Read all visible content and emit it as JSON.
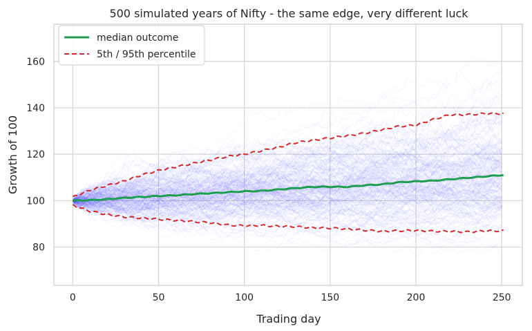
{
  "chart_data": {
    "type": "line",
    "title": "500 simulated years of Nifty - the same edge, very different luck",
    "xlabel": "Trading day",
    "ylabel": "Growth of 100",
    "xlim": [
      -11,
      262
    ],
    "ylim": [
      63.5,
      176
    ],
    "xticks": [
      0,
      50,
      100,
      150,
      200,
      250
    ],
    "yticks": [
      80,
      100,
      120,
      140,
      160
    ],
    "grid": true,
    "legend_position": "top-left",
    "simulated_paths": {
      "count": 500,
      "days": 251,
      "start_value": 100,
      "color": "#5b5bff",
      "opacity": 0.06
    },
    "series": [
      {
        "name": "median outcome",
        "color": "#1e9e4f",
        "style": "solid",
        "points": [
          [
            0,
            100
          ],
          [
            10,
            100.2
          ],
          [
            20,
            100.6
          ],
          [
            30,
            101.2
          ],
          [
            40,
            101.6
          ],
          [
            50,
            102.0
          ],
          [
            60,
            102.3
          ],
          [
            70,
            102.8
          ],
          [
            80,
            103.2
          ],
          [
            90,
            103.6
          ],
          [
            100,
            104.0
          ],
          [
            110,
            104.2
          ],
          [
            120,
            104.8
          ],
          [
            130,
            105.4
          ],
          [
            140,
            105.9
          ],
          [
            150,
            106.0
          ],
          [
            160,
            105.9
          ],
          [
            170,
            106.6
          ],
          [
            180,
            107.0
          ],
          [
            190,
            107.9
          ],
          [
            200,
            108.3
          ],
          [
            210,
            108.6
          ],
          [
            220,
            109.2
          ],
          [
            230,
            109.8
          ],
          [
            240,
            110.4
          ],
          [
            250,
            111.0
          ]
        ]
      },
      {
        "name": "5th / 95th percentile",
        "color": "#d62728",
        "style": "dashed",
        "points": [
          [
            0,
            101.5
          ],
          [
            10,
            104.5
          ],
          [
            20,
            106.5
          ],
          [
            30,
            108.5
          ],
          [
            40,
            111
          ],
          [
            50,
            113
          ],
          [
            60,
            114.5
          ],
          [
            70,
            116
          ],
          [
            80,
            117.5
          ],
          [
            90,
            119
          ],
          [
            100,
            120
          ],
          [
            110,
            121.5
          ],
          [
            120,
            123
          ],
          [
            130,
            125
          ],
          [
            140,
            126
          ],
          [
            150,
            127
          ],
          [
            160,
            128
          ],
          [
            170,
            129
          ],
          [
            180,
            130.5
          ],
          [
            190,
            132
          ],
          [
            200,
            132.5
          ],
          [
            210,
            135
          ],
          [
            220,
            137
          ],
          [
            230,
            137
          ],
          [
            240,
            137.5
          ],
          [
            250,
            137.5
          ]
        ]
      },
      {
        "name": "",
        "color": "#d62728",
        "style": "dashed",
        "points": [
          [
            0,
            98
          ],
          [
            10,
            95.5
          ],
          [
            20,
            94
          ],
          [
            30,
            93
          ],
          [
            40,
            92.5
          ],
          [
            50,
            92
          ],
          [
            60,
            91.5
          ],
          [
            70,
            91
          ],
          [
            80,
            90.5
          ],
          [
            90,
            89.5
          ],
          [
            100,
            89.2
          ],
          [
            110,
            89.3
          ],
          [
            120,
            89
          ],
          [
            130,
            88.8
          ],
          [
            140,
            88.3
          ],
          [
            150,
            88.2
          ],
          [
            160,
            87.8
          ],
          [
            170,
            87.3
          ],
          [
            180,
            86.8
          ],
          [
            190,
            87
          ],
          [
            200,
            87.2
          ],
          [
            210,
            86.8
          ],
          [
            220,
            86.8
          ],
          [
            230,
            86.5
          ],
          [
            240,
            87
          ],
          [
            250,
            87
          ]
        ]
      }
    ]
  }
}
